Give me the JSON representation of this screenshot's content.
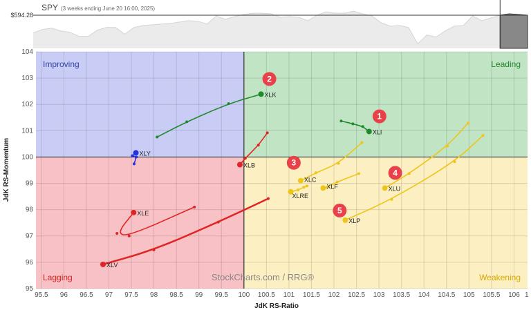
{
  "header": {
    "symbol": "SPY",
    "subtitle": "(3 weeks ending June 20 16:00, 2025)",
    "price_label": "$594.28"
  },
  "watermark": "StockCharts.com / RRG®",
  "colors": {
    "improving": "#c9cdf6",
    "leading": "#c0e4c4",
    "lagging": "#f8c1c5",
    "weakening": "#fcefc1",
    "green": "#1e8a2c",
    "blue": "#2233dd",
    "red": "#e02424",
    "yellow": "#efc51c",
    "badge": "#e8414a"
  },
  "chart_data": [
    {
      "type": "area",
      "title": "SPY",
      "series": [
        {
          "values": [
            563.1,
            569.1,
            571.5,
            566.7,
            564.3,
            557.1,
            557.1,
            567.9,
            572.7,
            572.7,
            560.7,
            572.7,
            576.3,
            577.5,
            578.7,
            579.9,
            582.3,
            584.7,
            583.5,
            578.7,
            593.1,
            587.1,
            591.9,
            595.5,
            597.9,
            597.9,
            596.7,
            590.7,
            591.9,
            590.7,
            584.7,
            594.3,
            600.3,
            597.9,
            597.9,
            601.5,
            596.7,
            593.1,
            581.1,
            575.1,
            576.3,
            572.7,
            543.9,
            559.5,
            555.9,
            566.7,
            575.1,
            576.3,
            593.1,
            584.7,
            589.5,
            594.3,
            596.7,
            595.5,
            594.3
          ]
        }
      ],
      "highlight_last_points": 4,
      "reference_value": 594.28,
      "ylim": [
        536,
        615
      ]
    },
    {
      "type": "scatter",
      "xlabel": "JdK RS-Ratio",
      "ylabel": "JdK RS-Momentum",
      "xlim": [
        95.38,
        106.3
      ],
      "ylim": [
        95,
        104
      ],
      "xticks": [
        "95.5",
        "96",
        "96.5",
        "97",
        "97.5",
        "98",
        "98.5",
        "99",
        "99.5",
        "100",
        "100.5",
        "101",
        "101.5",
        "102",
        "102.5",
        "103",
        "103.5",
        "104",
        "104.5",
        "105",
        "105.5",
        "106",
        "1"
      ],
      "yticks": [
        "104",
        "103",
        "102",
        "101",
        "100",
        "99",
        "98",
        "97",
        "96",
        "95"
      ],
      "grid": true,
      "quadrants": {
        "improving": "Improving",
        "leading": "Leading",
        "lagging": "Lagging",
        "weakening": "Weakening"
      },
      "series": [
        {
          "name": "XLK",
          "color": "green",
          "points": [
            [
              98.07,
              100.76
            ],
            [
              98.73,
              101.34
            ],
            [
              99.66,
              102.03
            ],
            [
              100.38,
              102.39
            ]
          ],
          "badge": "2"
        },
        {
          "name": "XLI",
          "color": "green",
          "points": [
            [
              102.16,
              101.37
            ],
            [
              102.42,
              101.26
            ],
            [
              102.64,
              101.16
            ],
            [
              102.78,
              100.97
            ]
          ],
          "badge": "1"
        },
        {
          "name": "XLY",
          "color": "blue",
          "points": [
            [
              97.56,
              99.74
            ],
            [
              97.61,
              100.0
            ],
            [
              97.52,
              100.05
            ],
            [
              97.6,
              100.16
            ]
          ]
        },
        {
          "name": "XLB",
          "color": "red",
          "points": [
            [
              100.52,
              100.92
            ],
            [
              100.32,
              100.45
            ],
            [
              100.03,
              99.95
            ],
            [
              99.91,
              99.71
            ]
          ]
        },
        {
          "name": "XLE",
          "color": "red",
          "points": [
            [
              98.9,
              98.1
            ],
            [
              97.45,
              97.0
            ],
            [
              97.18,
              97.1
            ],
            [
              97.55,
              97.89
            ]
          ]
        },
        {
          "name": "XLV",
          "color": "red",
          "points": [
            [
              100.54,
              98.42
            ],
            [
              99.43,
              97.53
            ],
            [
              98.0,
              96.47
            ],
            [
              96.87,
              95.92
            ]
          ]
        },
        {
          "name": "XLC",
          "color": "yellow",
          "points": [
            [
              102.62,
              100.55
            ],
            [
              102.1,
              99.76
            ],
            [
              101.6,
              99.4
            ],
            [
              101.26,
              99.1
            ]
          ],
          "badge": "3"
        },
        {
          "name": "XLF",
          "color": "yellow",
          "points": [
            [
              102.55,
              99.37
            ],
            [
              102.07,
              99.05
            ],
            [
              101.85,
              98.85
            ],
            [
              101.76,
              98.82
            ]
          ]
        },
        {
          "name": "XLRE",
          "color": "yellow",
          "points": [
            [
              101.4,
              98.9
            ],
            [
              101.33,
              98.85
            ],
            [
              101.2,
              98.75
            ],
            [
              101.04,
              98.68
            ]
          ]
        },
        {
          "name": "XLU",
          "color": "yellow",
          "points": [
            [
              104.98,
              101.29
            ],
            [
              104.52,
              100.42
            ],
            [
              103.67,
              99.37
            ],
            [
              103.13,
              98.82
            ]
          ],
          "badge": "4"
        },
        {
          "name": "XLP",
          "color": "yellow",
          "points": [
            [
              105.31,
              100.82
            ],
            [
              104.68,
              99.82
            ],
            [
              103.28,
              98.39
            ],
            [
              102.25,
              97.6
            ]
          ],
          "badge": "5"
        }
      ]
    }
  ]
}
